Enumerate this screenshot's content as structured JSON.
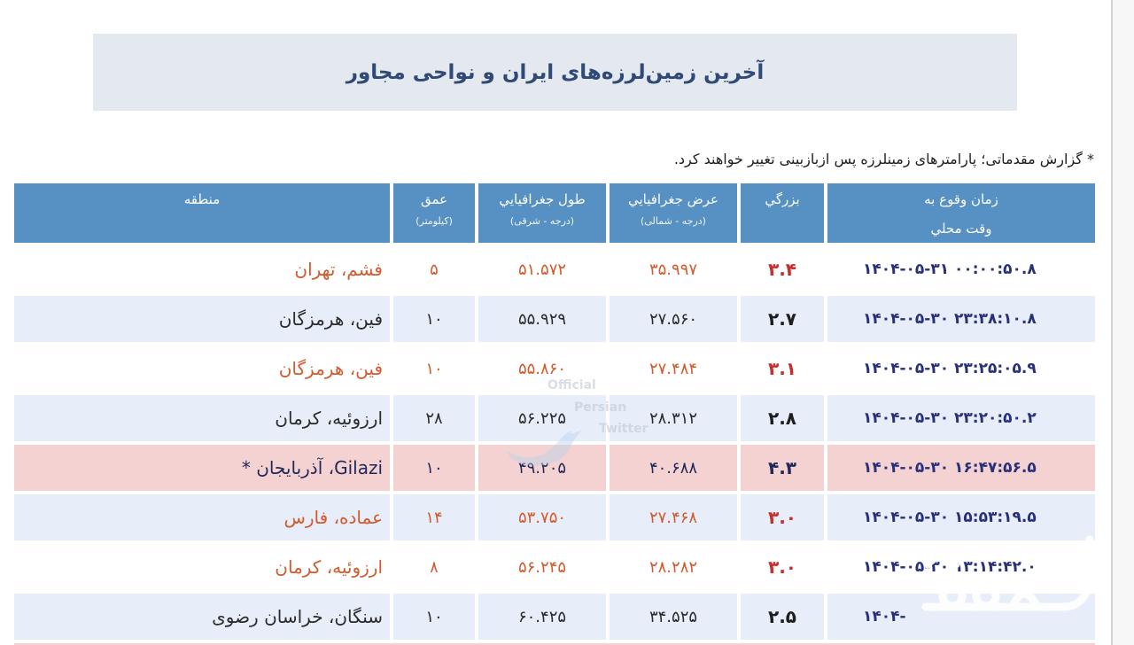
{
  "page": {
    "title": "آخرین زمین‌لرزه‌های ایران و نواحی مجاور",
    "note": "* گزارش مقدماتی؛ پارامترهای زمینلرزه پس ازبازبینی تغییر خواهند کرد."
  },
  "colors": {
    "title_box_bg": "#e4e8ef",
    "title_text": "#2f4a77",
    "header_bg": "#5791c3",
    "header_text": "#ffffff",
    "time_text": "#29307a"
  },
  "table": {
    "headers": {
      "time": {
        "line1": "زمان وقوع به",
        "line2": "وقت محلي"
      },
      "magnitude": {
        "label": "بزرگي"
      },
      "latitude": {
        "label": "عرض جغرافيايي",
        "unit": "(درجه - شمالی)"
      },
      "longitude": {
        "label": "طول جغرافيايي",
        "unit": "(درجه - شرقی)"
      },
      "depth": {
        "label": "عمق",
        "unit": "(کیلومتر)"
      },
      "region": {
        "label": "منطقه"
      }
    },
    "rows": [
      {
        "time": "۱۴۰۴-۰۵-۳۱ ۰۰:۰۰:۵۰.۸",
        "magnitude": "۳.۴",
        "latitude": "۳۵.۹۹۷",
        "longitude": "۵۱.۵۷۲",
        "depth": "۵",
        "region": "فشم، تهران",
        "bg": "#ffffff",
        "fg": "#d35a2c",
        "mag_color": "#c52e2a"
      },
      {
        "time": "۱۴۰۴-۰۵-۳۰ ۲۳:۳۸:۱۰.۸",
        "magnitude": "۲.۷",
        "latitude": "۲۷.۵۶۰",
        "longitude": "۵۵.۹۲۹",
        "depth": "۱۰",
        "region": "فین، هرمزگان",
        "bg": "#e7eefa",
        "fg": "#2a2a2a",
        "mag_color": "#1e1e1e"
      },
      {
        "time": "۱۴۰۴-۰۵-۳۰ ۲۳:۲۵:۰۵.۹",
        "magnitude": "۳.۱",
        "latitude": "۲۷.۴۸۴",
        "longitude": "۵۵.۸۶۰",
        "depth": "۱۰",
        "region": "فین، هرمزگان",
        "bg": "#ffffff",
        "fg": "#d35a2c",
        "mag_color": "#c52e2a"
      },
      {
        "time": "۱۴۰۴-۰۵-۳۰ ۲۳:۲۰:۵۰.۲",
        "magnitude": "۲.۸",
        "latitude": "۲۸.۳۱۲",
        "longitude": "۵۶.۲۲۵",
        "depth": "۲۸",
        "region": "ارزوئیه، کرمان",
        "bg": "#e7eefa",
        "fg": "#2a2a2a",
        "mag_color": "#1e1e1e"
      },
      {
        "time": "۱۴۰۴-۰۵-۳۰ ۱۶:۴۷:۵۶.۵",
        "magnitude": "۴.۳",
        "latitude": "۴۰.۶۸۸",
        "longitude": "۴۹.۲۰۵",
        "depth": "۱۰",
        "region": "Gilazi، آذربایجان *",
        "bg": "#f5d2d2",
        "fg": "#1f2858",
        "mag_color": "#1f2858"
      },
      {
        "time": "۱۴۰۴-۰۵-۳۰ ۱۵:۵۳:۱۹.۵",
        "magnitude": "۳.۰",
        "latitude": "۲۷.۴۶۸",
        "longitude": "۵۳.۷۵۰",
        "depth": "۱۴",
        "region": "عماده، فارس",
        "bg": "#e7eefa",
        "fg": "#d35a2c",
        "mag_color": "#c52e2a"
      },
      {
        "time": "۱۴۰۴-۰۵-۳۰ ۱۳:۱۴:۴۲.۰",
        "magnitude": "۳.۰",
        "latitude": "۲۸.۲۸۲",
        "longitude": "۵۶.۲۴۵",
        "depth": "۸",
        "region": "ارزوئیه، کرمان",
        "bg": "#ffffff",
        "fg": "#d35a2c",
        "mag_color": "#c52e2a"
      },
      {
        "time": "۱۴۰۴-",
        "magnitude": "۲.۵",
        "latitude": "۳۴.۵۲۵",
        "longitude": "۶۰.۴۲۵",
        "depth": "۱۰",
        "region": "سنگان، خراسان رضوی",
        "bg": "#e7eefa",
        "fg": "#2a2a2a",
        "mag_color": "#1e1e1e"
      }
    ]
  },
  "watermark": {
    "line1": "Official",
    "line2": "Persian",
    "line3": "Twitter",
    "icon": "bird-icon"
  }
}
